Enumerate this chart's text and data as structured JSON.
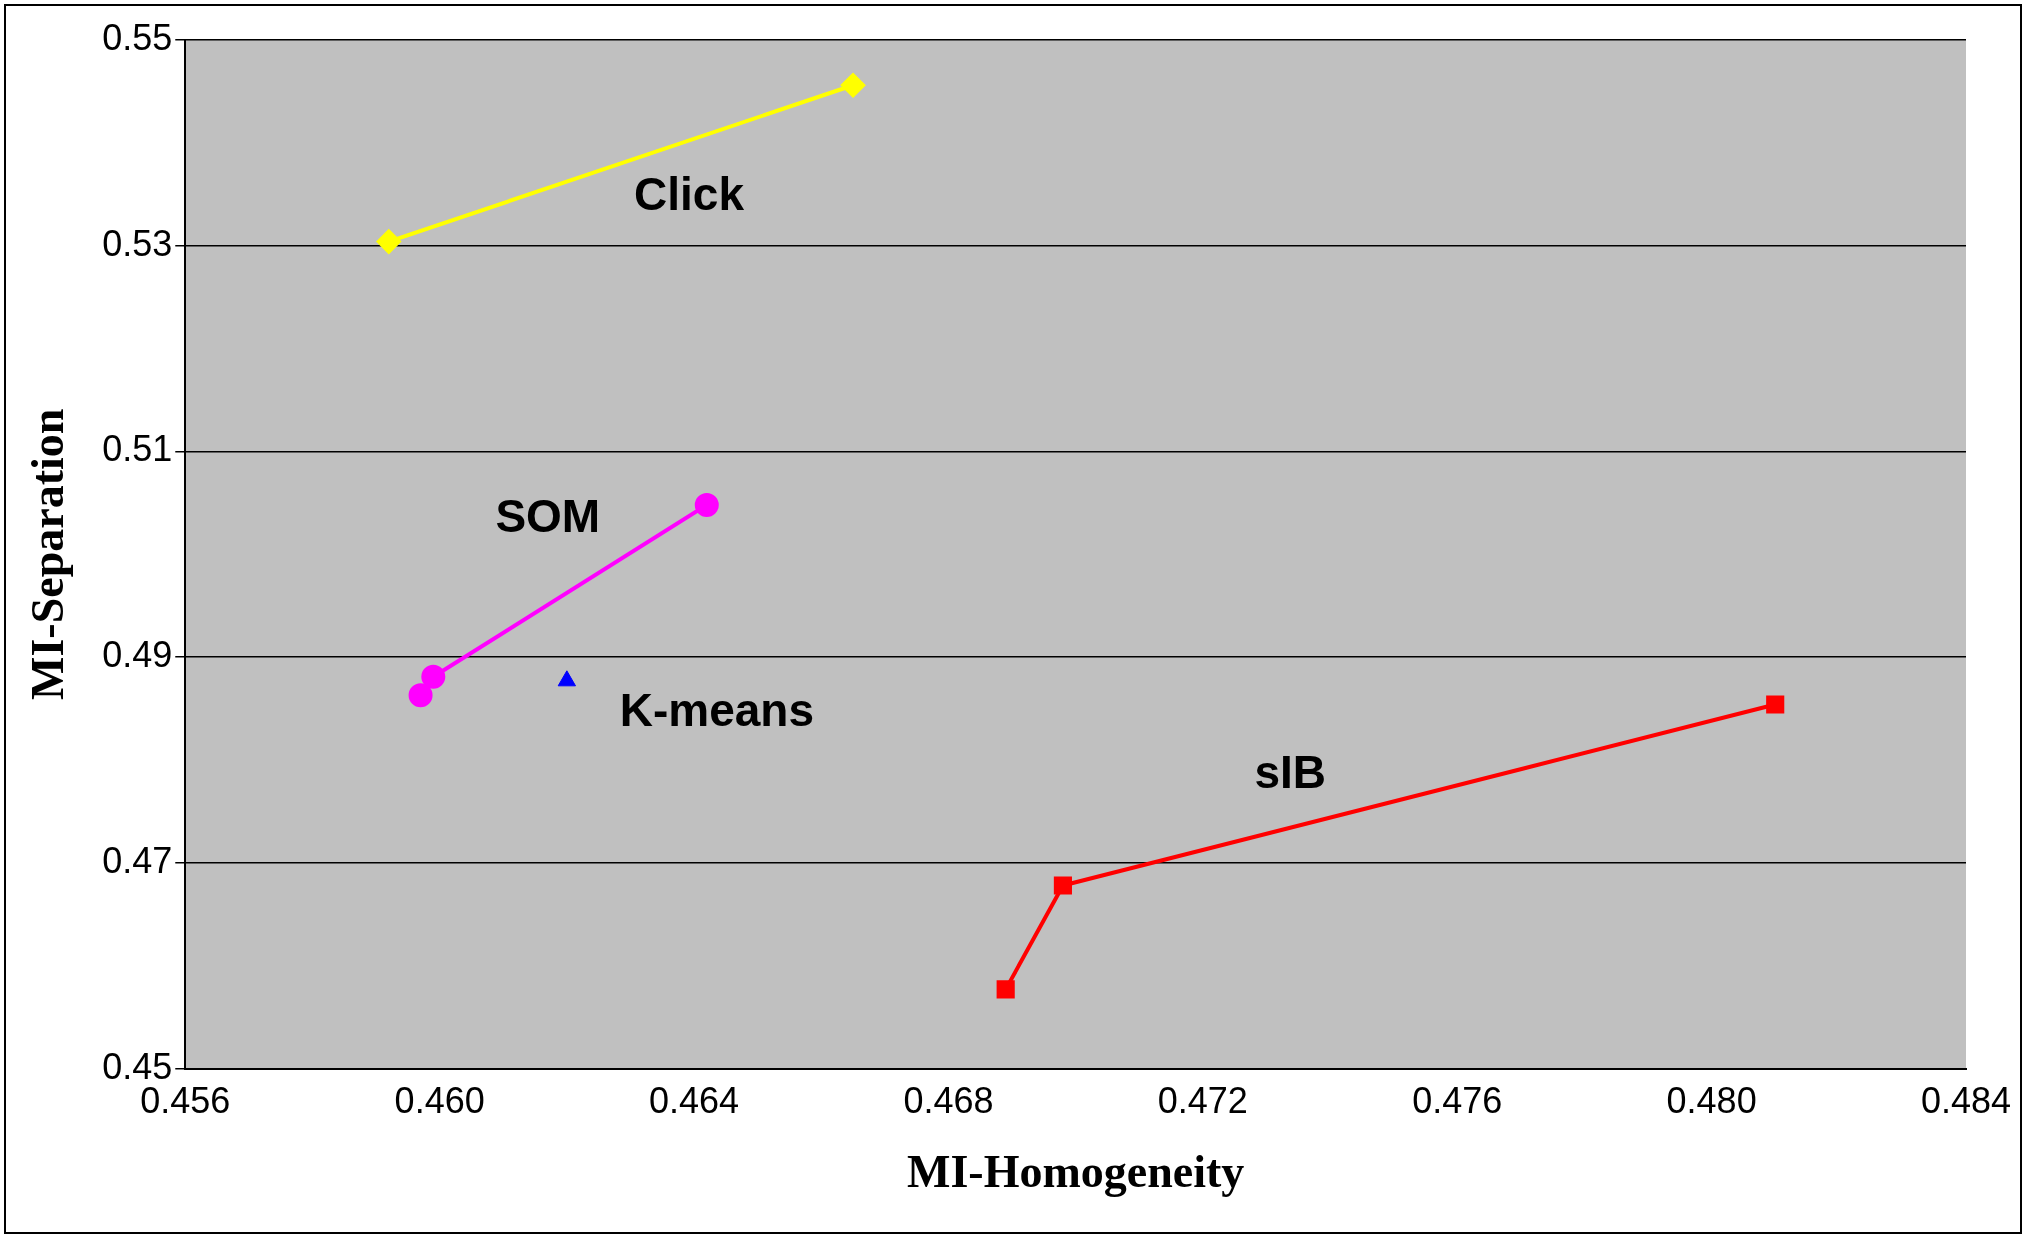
{
  "chart_data": {
    "type": "line",
    "xlabel": "MI-Homogeneity",
    "ylabel": "MI-Separation",
    "xlim": [
      0.456,
      0.484
    ],
    "xticks": [
      {
        "value": 0.456,
        "label": "0.456"
      },
      {
        "value": 0.46,
        "label": "0.460"
      },
      {
        "value": 0.464,
        "label": "0.464"
      },
      {
        "value": 0.468,
        "label": "0.468"
      },
      {
        "value": 0.472,
        "label": "0.472"
      },
      {
        "value": 0.476,
        "label": "0.476"
      },
      {
        "value": 0.48,
        "label": "0.480"
      },
      {
        "value": 0.484,
        "label": "0.484"
      }
    ],
    "ylim": [
      0.45,
      0.55
    ],
    "yticks": [
      0.45,
      0.47,
      0.49,
      0.51,
      0.53,
      0.55
    ],
    "grid": "y",
    "legend": false,
    "series": [
      {
        "name": "Click",
        "color": "#ffff00",
        "marker": "diamond",
        "x": [
          0.4592,
          0.4665
        ],
        "values": [
          0.5304,
          0.5456
        ]
      },
      {
        "name": "SOM",
        "color": "#ff00ff",
        "marker": "circle",
        "x": [
          0.4597,
          0.4599,
          0.4642
        ],
        "values": [
          0.4863,
          0.4881,
          0.5048
        ]
      },
      {
        "name": "K-means",
        "type": "scatter",
        "color": "#0000ff",
        "marker": "triangle",
        "x": [
          0.462
        ],
        "values": [
          0.4877
        ]
      },
      {
        "name": "sIB",
        "color": "#ff0000",
        "marker": "square",
        "x": [
          0.4689,
          0.4698,
          0.481
        ],
        "values": [
          0.4577,
          0.4678,
          0.4854
        ]
      }
    ]
  }
}
